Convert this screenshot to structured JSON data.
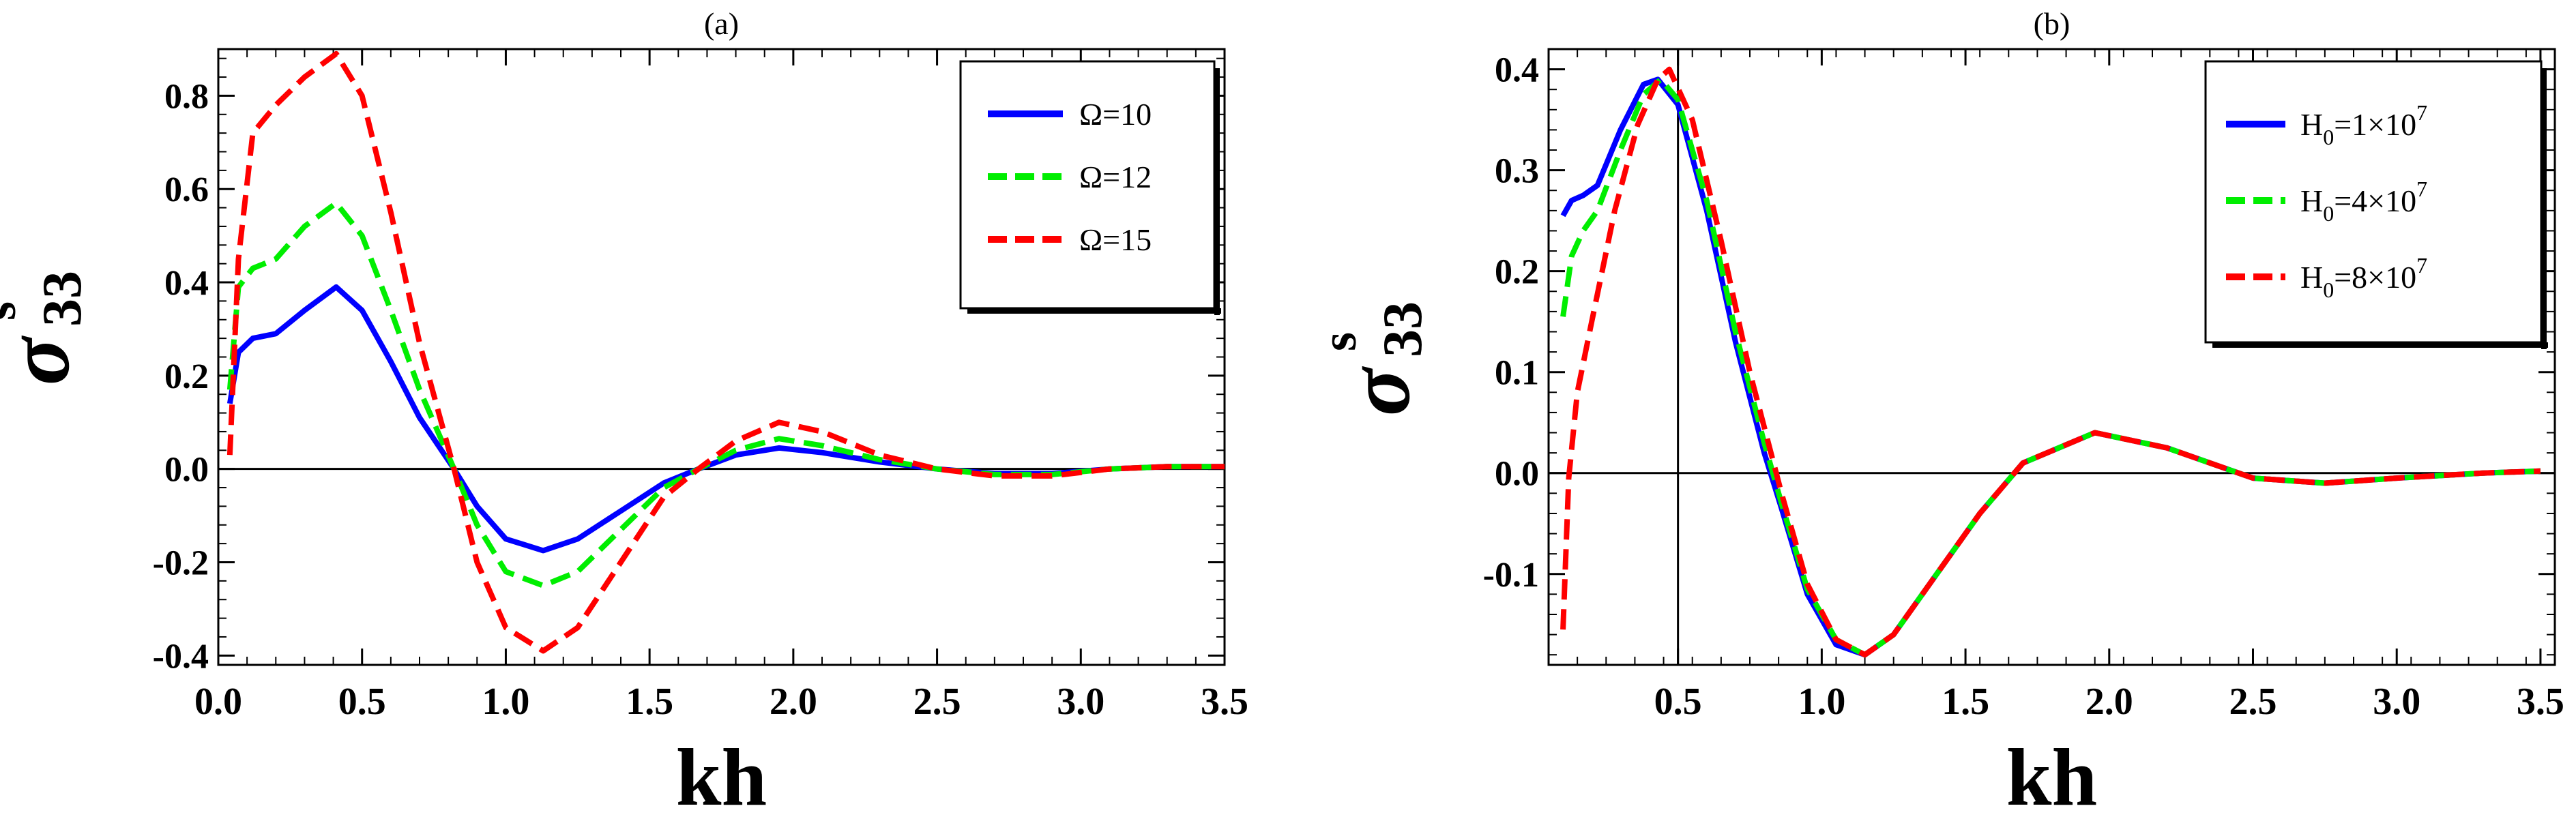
{
  "chart_data": [
    {
      "id": "a",
      "panel_label": "(a)",
      "type": "line",
      "xlabel": "kh",
      "ylabel": "σ",
      "ylabel_sup": "s",
      "ylabel_sub": "33",
      "xlim": [
        0.0,
        3.5
      ],
      "ylim": [
        -0.42,
        0.9
      ],
      "xticks": [
        0.0,
        0.5,
        1.0,
        1.5,
        2.0,
        2.5,
        3.0,
        3.5
      ],
      "xtick_labels": [
        "0.0",
        "0.5",
        "1.0",
        "1.5",
        "2.0",
        "2.5",
        "3.0",
        "3.5"
      ],
      "yticks": [
        -0.4,
        -0.2,
        0.0,
        0.2,
        0.4,
        0.6,
        0.8
      ],
      "ytick_labels": [
        "-0.4",
        "-0.2",
        "0.0",
        "0.2",
        "0.4",
        "0.6",
        "0.8"
      ],
      "reference_lines": [
        {
          "axis": "y",
          "value": 0
        }
      ],
      "legend_position": "top-right",
      "series": [
        {
          "name": "Ω=10",
          "color": "#0000ff",
          "dash": "solid",
          "legend": {
            "text": "Ω=10"
          },
          "x": [
            0.04,
            0.07,
            0.12,
            0.2,
            0.3,
            0.41,
            0.5,
            0.6,
            0.7,
            0.82,
            0.9,
            1.0,
            1.13,
            1.25,
            1.4,
            1.55,
            1.67,
            1.8,
            1.95,
            2.1,
            2.3,
            2.5,
            2.7,
            2.9,
            3.1,
            3.3,
            3.5
          ],
          "y": [
            0.14,
            0.25,
            0.28,
            0.29,
            0.34,
            0.39,
            0.34,
            0.23,
            0.11,
            0.0,
            -0.08,
            -0.15,
            -0.175,
            -0.15,
            -0.09,
            -0.03,
            0.0,
            0.03,
            0.045,
            0.035,
            0.015,
            0.0,
            -0.01,
            -0.01,
            0.0,
            0.005,
            0.005
          ]
        },
        {
          "name": "Ω=12",
          "color": "#00ee00",
          "dash": "dashed",
          "legend": {
            "text": "Ω=12"
          },
          "x": [
            0.04,
            0.07,
            0.12,
            0.2,
            0.3,
            0.41,
            0.5,
            0.6,
            0.7,
            0.82,
            0.9,
            1.0,
            1.13,
            1.25,
            1.4,
            1.55,
            1.67,
            1.8,
            1.95,
            2.1,
            2.3,
            2.5,
            2.7,
            2.9,
            3.1,
            3.3,
            3.5
          ],
          "y": [
            0.17,
            0.39,
            0.43,
            0.45,
            0.52,
            0.57,
            0.5,
            0.34,
            0.17,
            0.0,
            -0.12,
            -0.22,
            -0.25,
            -0.22,
            -0.13,
            -0.04,
            0.0,
            0.04,
            0.065,
            0.05,
            0.02,
            0.0,
            -0.012,
            -0.012,
            0.0,
            0.005,
            0.005
          ]
        },
        {
          "name": "Ω=15",
          "color": "#ff0000",
          "dash": "dashed",
          "legend": {
            "text": "Ω=15"
          },
          "x": [
            0.04,
            0.07,
            0.12,
            0.2,
            0.3,
            0.41,
            0.5,
            0.6,
            0.7,
            0.82,
            0.9,
            1.0,
            1.13,
            1.25,
            1.4,
            1.55,
            1.67,
            1.8,
            1.95,
            2.1,
            2.3,
            2.5,
            2.7,
            2.9,
            3.1,
            3.3,
            3.5
          ],
          "y": [
            0.03,
            0.45,
            0.72,
            0.78,
            0.84,
            0.89,
            0.8,
            0.55,
            0.27,
            0.0,
            -0.2,
            -0.34,
            -0.39,
            -0.34,
            -0.2,
            -0.06,
            0.0,
            0.06,
            0.1,
            0.08,
            0.03,
            0.0,
            -0.015,
            -0.015,
            0.0,
            0.005,
            0.005
          ]
        }
      ]
    },
    {
      "id": "b",
      "panel_label": "(b)",
      "type": "line",
      "xlabel": "kh",
      "ylabel": "σ",
      "ylabel_sup": "s",
      "ylabel_sub": "33",
      "xlim": [
        0.05,
        3.55
      ],
      "ylim": [
        -0.19,
        0.42
      ],
      "xticks": [
        0.5,
        1.0,
        1.5,
        2.0,
        2.5,
        3.0,
        3.5
      ],
      "xtick_labels": [
        "0.5",
        "1.0",
        "1.5",
        "2.0",
        "2.5",
        "3.0",
        "3.5"
      ],
      "yticks": [
        -0.1,
        0.0,
        0.1,
        0.2,
        0.3,
        0.4
      ],
      "ytick_labels": [
        "-0.1",
        "0.0",
        "0.1",
        "0.2",
        "0.3",
        "0.4"
      ],
      "reference_lines": [
        {
          "axis": "y",
          "value": 0
        },
        {
          "axis": "x",
          "value": 0.5
        }
      ],
      "legend_position": "top-right",
      "series": [
        {
          "name": "H0=1×10^7",
          "color": "#0000ff",
          "dash": "solid",
          "legend": {
            "base": "H",
            "sub": "0",
            "mid": "=1×10",
            "sup": "7"
          },
          "x": [
            0.1,
            0.13,
            0.17,
            0.22,
            0.3,
            0.38,
            0.43,
            0.5,
            0.6,
            0.7,
            0.8,
            0.86,
            0.95,
            1.05,
            1.15,
            1.25,
            1.4,
            1.55,
            1.7,
            1.95,
            2.2,
            2.5,
            2.75,
            3.0,
            3.3,
            3.5
          ],
          "y": [
            0.255,
            0.27,
            0.275,
            0.285,
            0.34,
            0.385,
            0.39,
            0.365,
            0.26,
            0.13,
            0.02,
            -0.035,
            -0.12,
            -0.17,
            -0.18,
            -0.16,
            -0.1,
            -0.04,
            0.01,
            0.04,
            0.025,
            -0.005,
            -0.01,
            -0.005,
            0.0,
            0.002
          ]
        },
        {
          "name": "H0=4×10^7",
          "color": "#00ee00",
          "dash": "dashed",
          "legend": {
            "base": "H",
            "sub": "0",
            "mid": "=4×10",
            "sup": "7"
          },
          "x": [
            0.1,
            0.13,
            0.17,
            0.22,
            0.3,
            0.38,
            0.44,
            0.5,
            0.6,
            0.7,
            0.8,
            0.86,
            0.95,
            1.05,
            1.15,
            1.25,
            1.4,
            1.55,
            1.7,
            1.95,
            2.2,
            2.5,
            2.75,
            3.0,
            3.3,
            3.5
          ],
          "y": [
            0.155,
            0.215,
            0.24,
            0.26,
            0.32,
            0.375,
            0.39,
            0.37,
            0.27,
            0.14,
            0.03,
            -0.03,
            -0.115,
            -0.165,
            -0.18,
            -0.16,
            -0.1,
            -0.04,
            0.01,
            0.04,
            0.025,
            -0.005,
            -0.01,
            -0.005,
            0.0,
            0.002
          ]
        },
        {
          "name": "H0=8×10^7",
          "color": "#ff0000",
          "dash": "dashed",
          "legend": {
            "base": "H",
            "sub": "0",
            "mid": "=8×10",
            "sup": "7"
          },
          "x": [
            0.1,
            0.12,
            0.15,
            0.2,
            0.28,
            0.36,
            0.43,
            0.47,
            0.55,
            0.65,
            0.75,
            0.86,
            0.95,
            1.05,
            1.15,
            1.25,
            1.4,
            1.55,
            1.7,
            1.95,
            2.2,
            2.5,
            2.75,
            3.0,
            3.3,
            3.5
          ],
          "y": [
            -0.155,
            -0.005,
            0.08,
            0.15,
            0.26,
            0.345,
            0.39,
            0.4,
            0.35,
            0.23,
            0.1,
            -0.02,
            -0.11,
            -0.165,
            -0.18,
            -0.16,
            -0.1,
            -0.04,
            0.01,
            0.04,
            0.025,
            -0.005,
            -0.01,
            -0.005,
            0.0,
            0.002
          ]
        }
      ]
    }
  ]
}
